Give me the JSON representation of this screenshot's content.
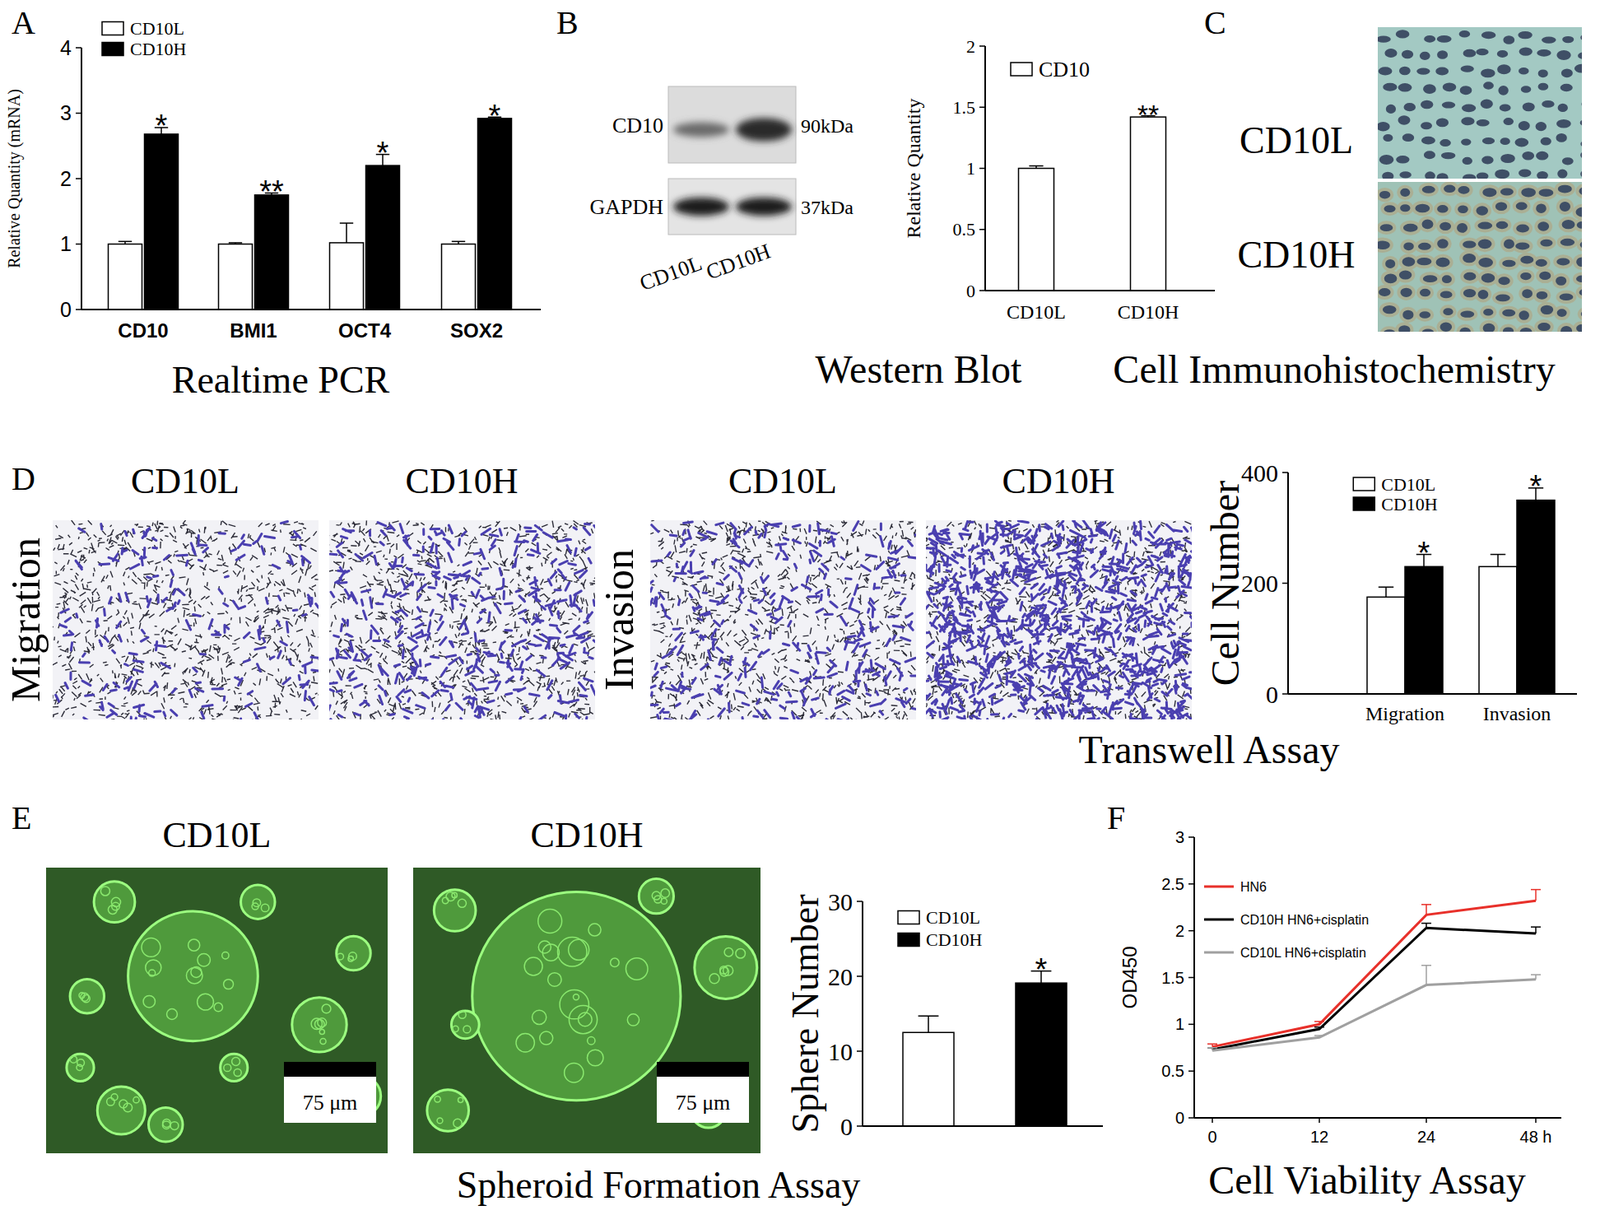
{
  "chart_data": [
    {
      "type": "bar",
      "title": "Realtime PCR",
      "y_label": "Relative Quantity (mRNA)",
      "categories": [
        "CD10",
        "BMI1",
        "OCT4",
        "SOX2"
      ],
      "ylim": [
        0,
        4
      ],
      "yticks": [
        0,
        1,
        2,
        3,
        4
      ],
      "grid": false,
      "legend": "top-left",
      "series": [
        {
          "name": "CD10L",
          "color": "#ffffff",
          "values": [
            1.0,
            1.0,
            1.02,
            1.0
          ],
          "errors": [
            0.04,
            0.02,
            0.3,
            0.04
          ]
        },
        {
          "name": "CD10H",
          "color": "#000000",
          "values": [
            2.68,
            1.75,
            2.2,
            2.92
          ],
          "errors": [
            0.1,
            0.03,
            0.17,
            0.02
          ],
          "significance": [
            "*",
            "**",
            "*",
            "*"
          ]
        }
      ]
    },
    {
      "type": "bar",
      "title": "Western Blot",
      "y_label": "Relative Quantity",
      "categories": [
        "CD10L",
        "CD10H"
      ],
      "ylim": [
        0,
        2
      ],
      "yticks": [
        0,
        0.5,
        1,
        1.5,
        2
      ],
      "grid": false,
      "legend": "top-left",
      "series": [
        {
          "name": "CD10",
          "color": "#ffffff",
          "values": [
            1.0,
            1.42
          ],
          "errors": [
            0.02,
            0.01
          ],
          "significance": [
            null,
            "**"
          ]
        }
      ]
    },
    {
      "type": "bar",
      "title": "Transwell Assay",
      "y_label": "Cell Number",
      "categories": [
        "Migration",
        "Invasion"
      ],
      "ylim": [
        0,
        400
      ],
      "yticks": [
        0,
        200,
        400
      ],
      "grid": false,
      "legend": "top",
      "series": [
        {
          "name": "CD10L",
          "color": "#ffffff",
          "values": [
            175,
            230
          ],
          "errors": [
            18,
            22
          ]
        },
        {
          "name": "CD10H",
          "color": "#000000",
          "values": [
            230,
            350
          ],
          "errors": [
            22,
            22
          ],
          "significance": [
            "*",
            "*"
          ]
        }
      ]
    },
    {
      "type": "bar",
      "title": "Spheroid Formation Assay",
      "y_label": "Sphere Number",
      "categories": [
        null
      ],
      "ylim": [
        0,
        30
      ],
      "yticks": [
        0,
        10,
        20,
        30
      ],
      "grid": false,
      "legend": "top-left",
      "series": [
        {
          "name": "CD10L",
          "color": "#ffffff",
          "values": [
            12.5
          ],
          "errors": [
            2.2
          ]
        },
        {
          "name": "CD10H",
          "color": "#000000",
          "values": [
            19.1
          ],
          "errors": [
            1.6
          ],
          "significance": [
            "*"
          ]
        }
      ]
    },
    {
      "type": "line",
      "title": "Cell Viability Assay",
      "y_label": "OD450",
      "categories": [
        "0",
        "12",
        "24",
        "48 h"
      ],
      "ylim": [
        0,
        3
      ],
      "yticks": [
        0,
        0.5,
        1,
        1.5,
        2,
        2.5,
        3
      ],
      "grid": false,
      "legend": "top-left",
      "series": [
        {
          "name": "HN6",
          "color": "#e8302a",
          "values": [
            0.76,
            1.0,
            2.17,
            2.32
          ],
          "errors": [
            0.03,
            0.03,
            0.11,
            0.12
          ]
        },
        {
          "name": "CD10H HN6+cisplatin",
          "color": "#000000",
          "values": [
            0.73,
            0.95,
            2.03,
            1.97
          ],
          "errors": [
            0.02,
            0.02,
            0.05,
            0.07
          ]
        },
        {
          "name": "CD10L HN6+cisplatin",
          "color": "#a0a0a0",
          "values": [
            0.72,
            0.86,
            1.42,
            1.48
          ],
          "errors": [
            0.03,
            0.02,
            0.21,
            0.05
          ]
        }
      ]
    }
  ],
  "panel_labels": [
    "A",
    "B",
    "C",
    "D",
    "E",
    "F"
  ],
  "western_blot": {
    "bands": [
      "CD10",
      "GAPDH"
    ],
    "sizes": [
      "90kDa",
      "37kDa"
    ],
    "lanes": [
      "CD10L",
      "CD10H"
    ]
  },
  "immunohistochemistry": {
    "title": "Cell Immunohistochemistry",
    "labels": [
      "CD10L",
      "CD10H"
    ]
  },
  "transwell_images": {
    "groups": [
      {
        "label": "Migration",
        "columns": [
          "CD10L",
          "CD10H"
        ]
      },
      {
        "label": "Invasion",
        "columns": [
          "CD10L",
          "CD10H"
        ]
      }
    ]
  },
  "spheroid_images": {
    "labels": [
      "CD10L",
      "CD10H"
    ],
    "scale_bars": [
      "75 μm",
      "75 μm"
    ]
  }
}
